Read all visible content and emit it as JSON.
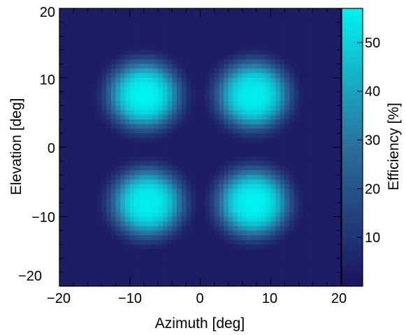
{
  "chart_data": {
    "type": "heatmap",
    "title": "",
    "xlabel": "Azimuth [deg]",
    "ylabel": "Elevation [deg]",
    "colorbar_label": "Efficiency [%]",
    "xlim": [
      -20,
      20
    ],
    "ylim": [
      -20,
      20
    ],
    "zlim": [
      0,
      57
    ],
    "x_ticks": [
      "−20",
      "−10",
      "0",
      "10",
      "20"
    ],
    "y_ticks": [
      "20",
      "10",
      "0",
      "−10",
      "−20"
    ],
    "colorbar_ticks": [
      "10",
      "20",
      "30",
      "40",
      "50"
    ],
    "colorbar_tick_values": [
      10,
      20,
      30,
      40,
      50
    ],
    "background_level": 3,
    "lobes": [
      {
        "az": -8.0,
        "el": 7.5,
        "peak": 57
      },
      {
        "az": 7.5,
        "el": 7.5,
        "peak": 56
      },
      {
        "az": -7.5,
        "el": -8.0,
        "peak": 56
      },
      {
        "az": 7.5,
        "el": -8.0,
        "peak": 57
      }
    ],
    "colors": {
      "low": "#1c1360",
      "mid": "#2a6f9c",
      "high": "#00f2f2"
    }
  }
}
